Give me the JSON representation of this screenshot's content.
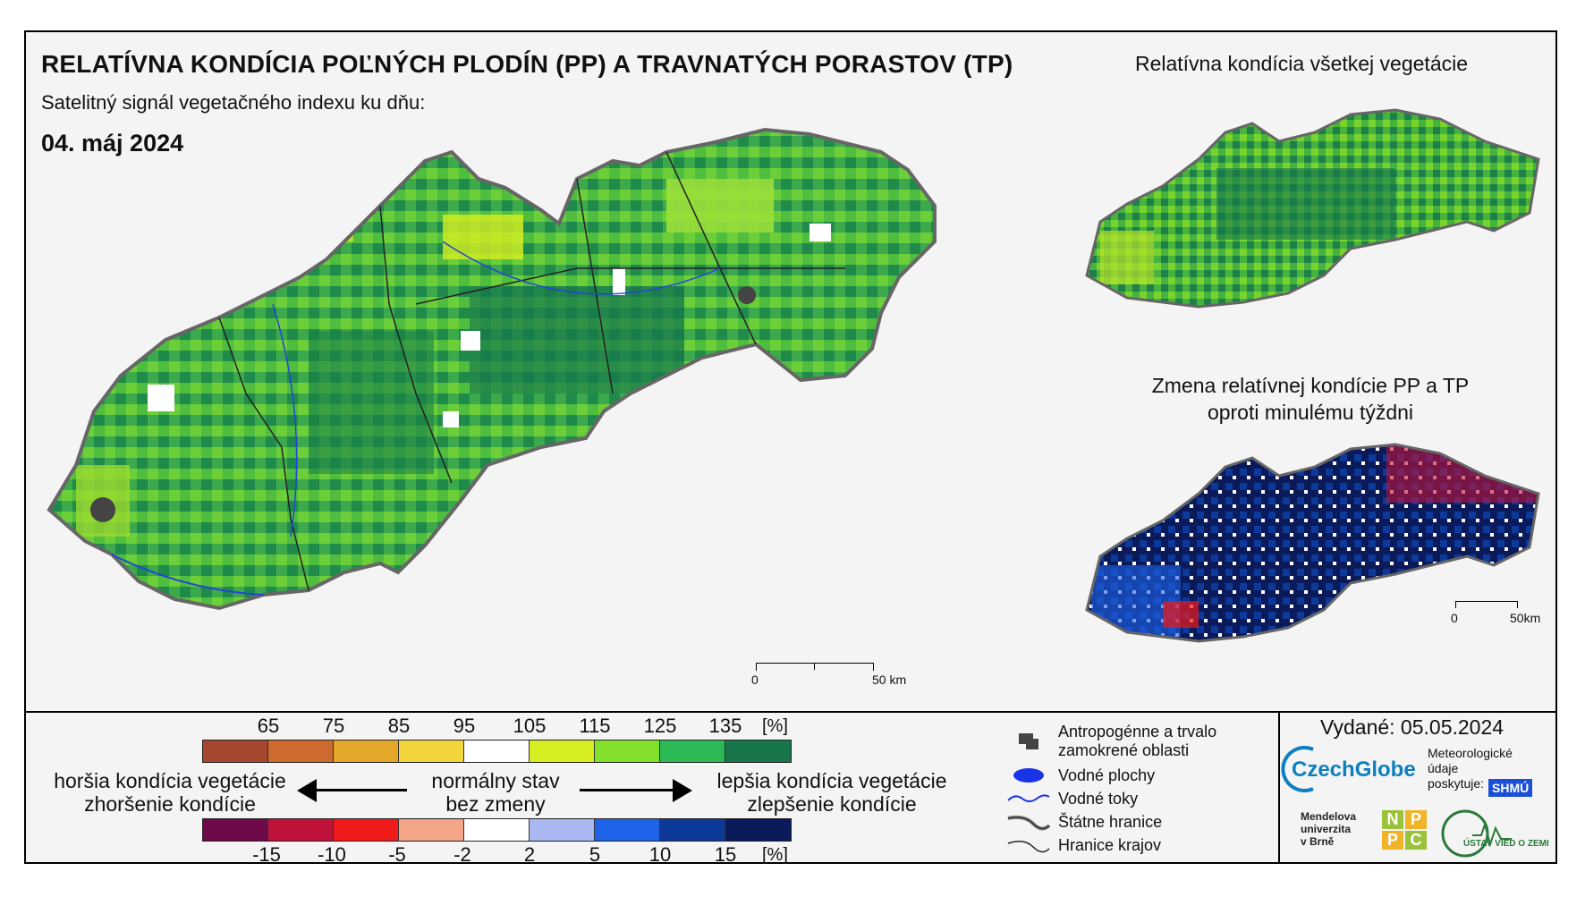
{
  "header": {
    "title": "RELATÍVNA KONDÍCIA POĽNÝCH PLODÍN (PP) A TRAVNATÝCH PORASTOV (TP)",
    "subtitle": "Satelitný signál vegetačného indexu ku dňu:",
    "date": "04. máj 2024"
  },
  "insets": {
    "top_title": "Relatívna kondícia všetkej vegetácie",
    "bottom_title_line1": "Zmena relatívnej kondície PP a TP",
    "bottom_title_line2": "oproti minulému týždni"
  },
  "scalebars": {
    "main_zero": "0",
    "main_end": "50 km",
    "inset_zero": "0",
    "inset_end": "50km"
  },
  "legend": {
    "condition_ticks": [
      "65",
      "75",
      "85",
      "95",
      "105",
      "115",
      "125",
      "135"
    ],
    "condition_unit": "[%]",
    "condition_colors": [
      "#a5482f",
      "#cd6a2e",
      "#e4a72a",
      "#f2d43c",
      "#ffffff",
      "#d6ee22",
      "#82e02a",
      "#2bb956",
      "#17774b"
    ],
    "change_ticks": [
      "-15",
      "-10",
      "-5",
      "-2",
      "2",
      "5",
      "10",
      "15"
    ],
    "change_unit": "[%]",
    "change_colors": [
      "#6e0a4a",
      "#c0123a",
      "#f01a1a",
      "#f4a488",
      "#ffffff",
      "#a9b8f0",
      "#1f63e8",
      "#0d3a9a",
      "#0a1a5a"
    ],
    "worse_line1": "horšia kondícia vegetácie",
    "worse_line2": "zhoršenie kondície",
    "normal_line1": "normálny stav",
    "normal_line2": "bez zmeny",
    "better_line1": "lepšia kondícia vegetácie",
    "better_line2": "zlepšenie kondície"
  },
  "map_legend": {
    "anthro_line1": "Antropogénne a trvalo",
    "anthro_line2": "zamokrené oblasti",
    "water_areas": "Vodné plochy",
    "rivers": "Vodné toky",
    "state_border": "Štátne hranice",
    "region_border": "Hranice krajov"
  },
  "footer": {
    "issued": "Vydané: 05.05.2024",
    "czechglobe": "CzechGlobe",
    "meteo_line1": "Meteorologické",
    "meteo_line2": "údaje",
    "meteo_line3": "poskytuje:",
    "shmu": "SHMÚ",
    "mendel_line1": "Mendelova",
    "mendel_line2": "univerzita",
    "mendel_line3": "v Brně",
    "nppc": [
      "N",
      "P",
      "P",
      "C"
    ],
    "uvz": "ÚSTAV VIED O ZEMI"
  }
}
